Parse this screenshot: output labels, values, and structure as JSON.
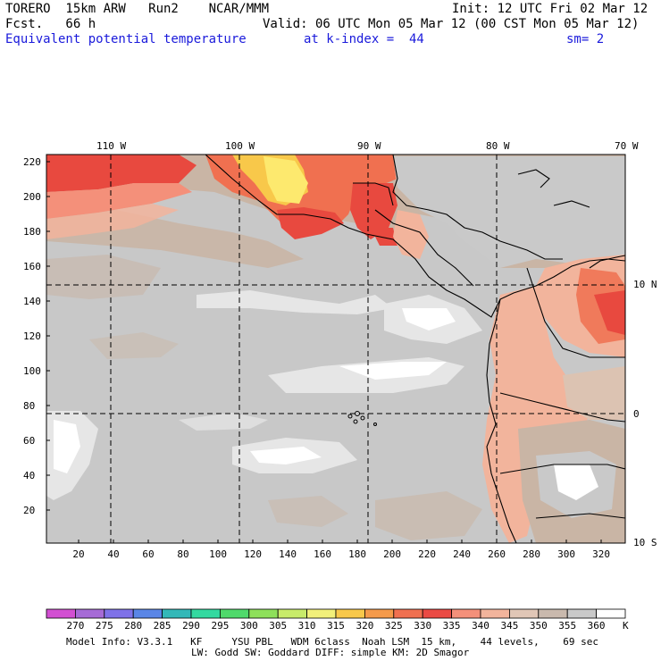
{
  "header": {
    "model": "TORERO  15km ARW   Run2    NCAR/MMM",
    "init": "Init: 12 UTC Fri 02 Mar 12",
    "fcst": "Fcst.   66 h",
    "valid": "Valid: 06 UTC Mon 05 Mar 12 (00 CST Mon 05 Mar 12)",
    "field": "Equivalent potential temperature",
    "level": "at k-index =  44",
    "smooth": "sm= 2"
  },
  "map": {
    "lon_labels": [
      "110 W",
      "100 W",
      "90 W",
      "80 W",
      "70 W"
    ],
    "lat_labels": [
      "10 N",
      "0",
      "10 S"
    ],
    "y_ticks": [
      "220",
      "200",
      "180",
      "160",
      "140",
      "120",
      "100",
      "80",
      "60",
      "40",
      "20"
    ],
    "x_ticks": [
      "20",
      "40",
      "60",
      "80",
      "100",
      "120",
      "140",
      "160",
      "180",
      "200",
      "220",
      "240",
      "260",
      "280",
      "300",
      "320"
    ],
    "colors": {
      "ocean_grey": "#c8c8c8",
      "tan": "#c9b5a5",
      "light_tan": "#dcc3b2",
      "peach": "#f4b79f",
      "salmon": "#f28d6f",
      "red": "#e8493f",
      "orange": "#f27a44",
      "light_orange": "#f8a050",
      "yellow": "#fde96e",
      "white": "#ffffff",
      "light_grey": "#e6e6e6"
    }
  },
  "colorbar": {
    "labels": [
      "270",
      "275",
      "280",
      "285",
      "290",
      "295",
      "300",
      "305",
      "310",
      "315",
      "320",
      "325",
      "330",
      "335",
      "340",
      "345",
      "350",
      "355",
      "360"
    ],
    "unit": "K",
    "colors": [
      "#d24fd2",
      "#a66bd6",
      "#7f72e8",
      "#5a86e6",
      "#33b8b8",
      "#33d9a0",
      "#4fd96b",
      "#8ee05a",
      "#c8eb6a",
      "#f2f07a",
      "#f8c84a",
      "#f49a4a",
      "#f07050",
      "#ea4a44",
      "#f4907a",
      "#f2b49c",
      "#e0c6b6",
      "#c9b9ad",
      "#c9c9c9",
      "#ffffff"
    ]
  },
  "footer": {
    "line1": "Model Info: V3.3.1   KF     YSU PBL   WDM 6class  Noah LSM  15 km,    44 levels,    69 sec",
    "line2": "LW: Godd SW: Goddard DIFF: simple KM: 2D Smagor"
  }
}
